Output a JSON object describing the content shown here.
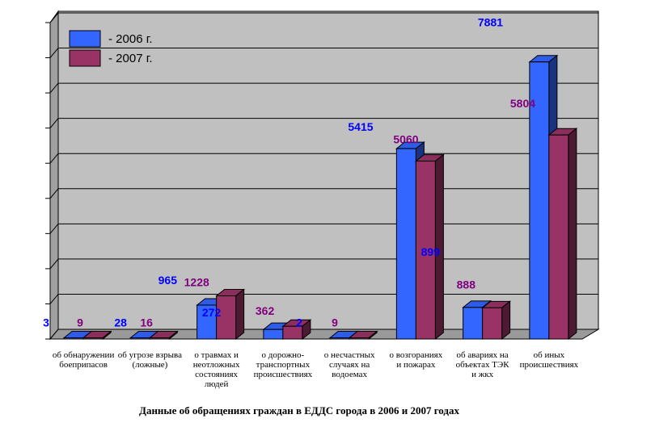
{
  "chart_data": {
    "type": "bar",
    "title": "Данные об обращениях граждан в ЕДДС города в 2006 и 2007 годах",
    "categories": [
      [
        "об обнаружении",
        "боеприпасов"
      ],
      [
        "об угрозе взрыва",
        "(ложные)"
      ],
      [
        "о травмах и",
        "неотложных",
        "состояниях",
        "людей"
      ],
      [
        "о дорожно-",
        "транспортных",
        "происшествиях"
      ],
      [
        "о несчастных",
        "случаях на",
        "водоемах"
      ],
      [
        "о возгораниях",
        "и пожарах"
      ],
      [
        "об авариях на",
        "объектах ТЭК",
        "и  жкх"
      ],
      [
        "об иных",
        "происшествиях"
      ]
    ],
    "series": [
      {
        "name": "- 2006 г.",
        "values": [
          3,
          28,
          965,
          272,
          2,
          5415,
          899,
          7881
        ],
        "labels": [
          "3",
          "28",
          "965",
          "272",
          "2",
          "5415",
          "899",
          "7881"
        ],
        "color": "#3366ff"
      },
      {
        "name": "- 2007 г.",
        "values": [
          9,
          16,
          1228,
          362,
          9,
          5060,
          888,
          5804
        ],
        "labels": [
          "9",
          "16",
          "1228",
          "362",
          "9",
          "5060",
          "888",
          "5804"
        ],
        "color": "#993366"
      }
    ],
    "ylim": [
      0,
      9000
    ],
    "legend": "top-left",
    "grid": true
  }
}
